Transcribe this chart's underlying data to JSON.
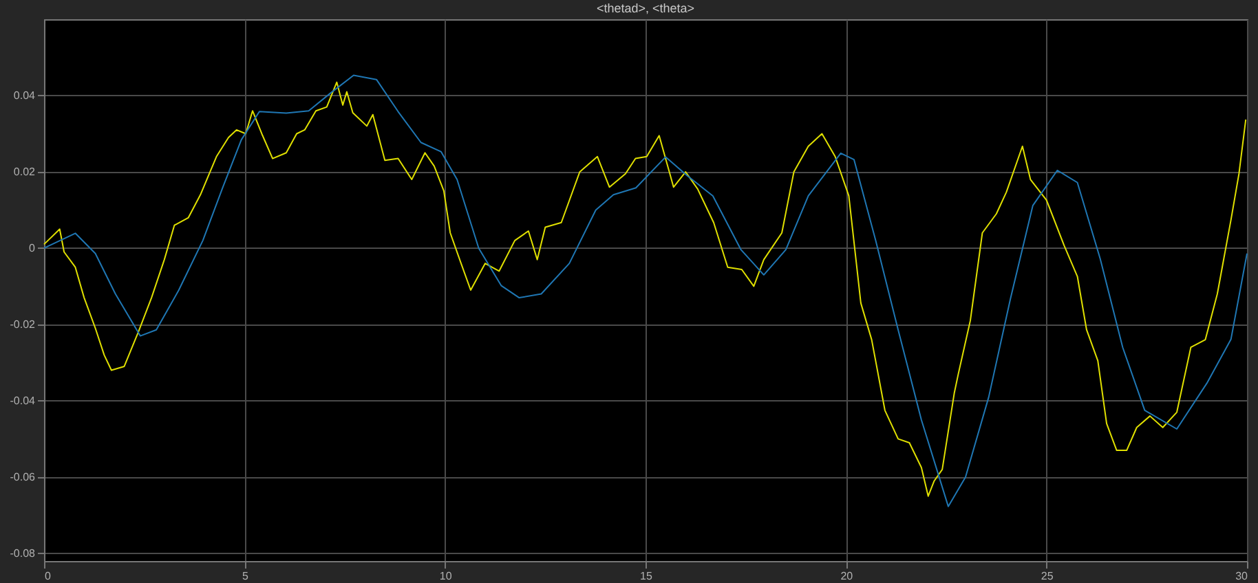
{
  "chart_data": {
    "type": "line",
    "title": "<thetad>, <theta>",
    "xlim": [
      0,
      30
    ],
    "xticks": [
      0,
      5,
      10,
      15,
      20,
      25,
      30
    ],
    "ylim": [
      -0.082,
      0.06
    ],
    "yticks": [
      -0.08,
      -0.06,
      -0.04,
      -0.02,
      0,
      0.02,
      0.04
    ],
    "grid": true,
    "legend": false,
    "line_style": "solid",
    "marker": "none",
    "series": [
      {
        "color": "#e0e000",
        "x": [
          0,
          0.39,
          0.5,
          0.78,
          1.0,
          1.28,
          1.5,
          1.68,
          2.0,
          2.35,
          2.68,
          3.0,
          3.25,
          3.6,
          3.9,
          4.3,
          4.6,
          4.8,
          5.03,
          5.2,
          5.43,
          5.7,
          6.04,
          6.3,
          6.5,
          6.78,
          7.05,
          7.3,
          7.45,
          7.55,
          7.7,
          8.05,
          8.2,
          8.5,
          8.83,
          9.17,
          9.5,
          9.73,
          9.97,
          10.13,
          10.4,
          10.64,
          11.0,
          11.35,
          11.74,
          12.08,
          12.3,
          12.5,
          12.9,
          13.36,
          13.8,
          14.1,
          14.5,
          14.75,
          15.03,
          15.34,
          15.7,
          16.0,
          16.3,
          16.7,
          17.05,
          17.4,
          17.7,
          17.95,
          18.4,
          18.7,
          19.06,
          19.4,
          19.73,
          20.07,
          20.37,
          20.64,
          20.97,
          21.3,
          21.58,
          21.88,
          22.05,
          22.2,
          22.4,
          22.7,
          22.8,
          23.1,
          23.4,
          23.75,
          24.0,
          24.4,
          24.6,
          25.0,
          25.44,
          25.77,
          26.0,
          26.28,
          26.5,
          26.75,
          27.0,
          27.25,
          27.58,
          27.9,
          28.25,
          28.6,
          28.96,
          29.26,
          29.6,
          29.8,
          29.97
        ],
        "values": [
          0.001,
          0.005,
          -0.001,
          -0.005,
          -0.013,
          -0.021,
          -0.028,
          -0.032,
          -0.031,
          -0.022,
          -0.013,
          -0.003,
          0.006,
          0.008,
          0.014,
          0.024,
          0.029,
          0.031,
          0.03,
          0.036,
          0.03,
          0.0235,
          0.025,
          0.03,
          0.031,
          0.036,
          0.037,
          0.0435,
          0.0375,
          0.041,
          0.0355,
          0.032,
          0.035,
          0.023,
          0.0235,
          0.018,
          0.025,
          0.0215,
          0.015,
          0.004,
          -0.004,
          -0.011,
          -0.004,
          -0.006,
          0.002,
          0.0045,
          -0.003,
          0.0055,
          0.0067,
          0.02,
          0.024,
          0.016,
          0.0195,
          0.0235,
          0.024,
          0.0295,
          0.016,
          0.02,
          0.0155,
          0.0067,
          -0.005,
          -0.0056,
          -0.01,
          -0.003,
          0.004,
          0.02,
          0.0267,
          0.03,
          0.024,
          0.0137,
          -0.0144,
          -0.024,
          -0.0425,
          -0.05,
          -0.051,
          -0.0575,
          -0.065,
          -0.061,
          -0.058,
          -0.038,
          -0.033,
          -0.019,
          0.004,
          0.009,
          0.0147,
          0.0267,
          0.018,
          0.0126,
          0.0007,
          -0.0074,
          -0.0214,
          -0.0295,
          -0.046,
          -0.053,
          -0.053,
          -0.047,
          -0.044,
          -0.047,
          -0.043,
          -0.026,
          -0.024,
          -0.012,
          0.0074,
          0.0195,
          0.0337
        ]
      },
      {
        "color": "#1f77b4",
        "x": [
          0,
          0.78,
          1.28,
          1.78,
          2.4,
          2.8,
          3.36,
          3.96,
          4.46,
          4.92,
          5.37,
          6.04,
          6.6,
          7.15,
          7.72,
          8.29,
          8.83,
          9.4,
          9.9,
          10.3,
          10.84,
          11.4,
          11.85,
          12.4,
          13.1,
          13.76,
          14.2,
          14.76,
          15.5,
          16.04,
          16.68,
          17.38,
          17.95,
          18.5,
          19.06,
          19.87,
          20.2,
          20.74,
          21.3,
          21.88,
          22.55,
          22.98,
          23.56,
          24.1,
          24.66,
          25.27,
          25.77,
          26.34,
          26.9,
          27.45,
          28.25,
          29.0,
          29.6,
          30
        ],
        "values": [
          0,
          0.0039,
          -0.0014,
          -0.012,
          -0.023,
          -0.0214,
          -0.011,
          0.002,
          0.016,
          0.0284,
          0.0358,
          0.0354,
          0.036,
          0.0407,
          0.0453,
          0.0442,
          0.0358,
          0.0277,
          0.0253,
          0.018,
          0,
          -0.0098,
          -0.013,
          -0.012,
          -0.004,
          0.01,
          0.014,
          0.0158,
          0.0239,
          0.019,
          0.0137,
          -0.0004,
          -0.007,
          -0.0004,
          0.0137,
          0.0249,
          0.0232,
          0.002,
          -0.0214,
          -0.045,
          -0.0677,
          -0.06,
          -0.039,
          -0.0133,
          0.0112,
          0.0204,
          0.0172,
          -0.0028,
          -0.026,
          -0.0425,
          -0.0474,
          -0.0354,
          -0.0239,
          -0.0014
        ]
      }
    ]
  }
}
